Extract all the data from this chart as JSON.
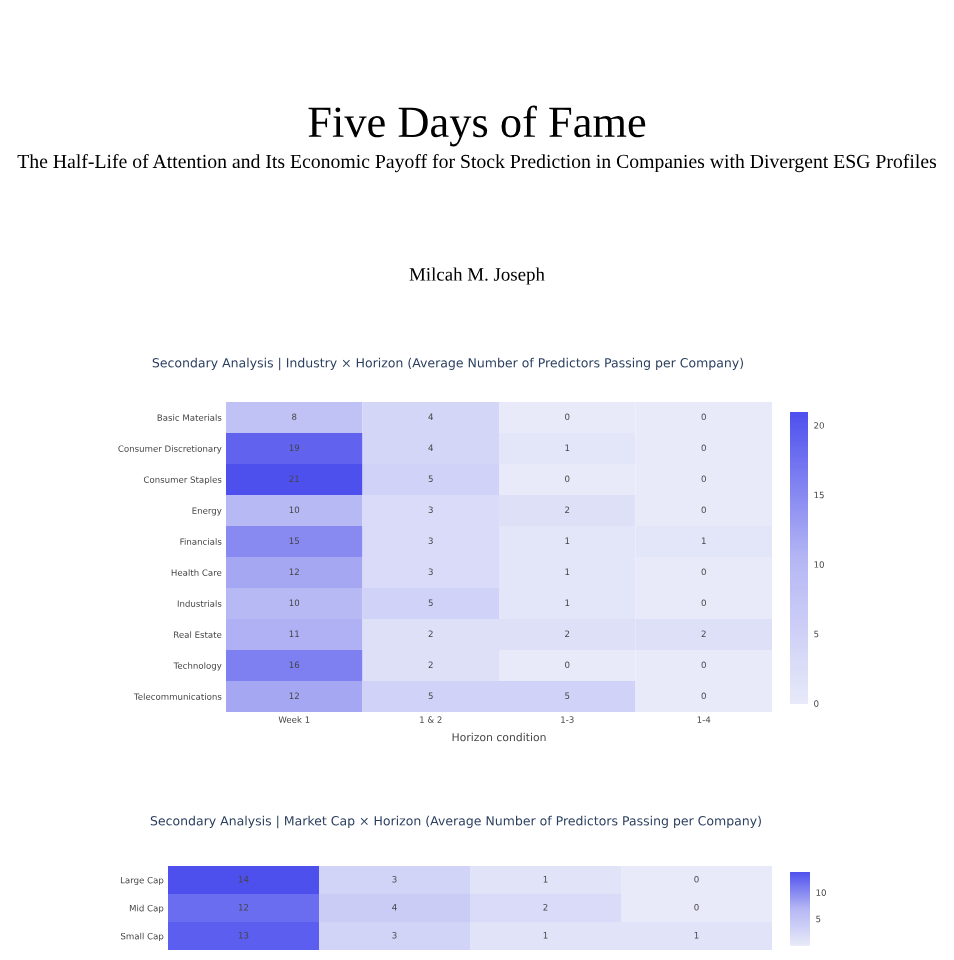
{
  "chart_data": [
    {
      "type": "other",
      "title": "Five Days of Fame",
      "subtitle": "The Half-Life of Attention and Its Economic Payoff for Stock Prediction in Companies with Divergent ESG Profiles",
      "annotations": [
        "Milcah M. Joseph"
      ]
    },
    {
      "type": "heatmap",
      "title": "Secondary Analysis | Industry × Horizon (Average Number of Predictors Passing per Company)",
      "xlabel": "Horizon condition",
      "categories": [
        "Week 1",
        "1 & 2",
        "1-3",
        "1-4"
      ],
      "y_categories": [
        "Basic Materials",
        "Consumer Discretionary",
        "Consumer Staples",
        "Energy",
        "Financials",
        "Health Care",
        "Industrials",
        "Real Estate",
        "Technology",
        "Telecommunications"
      ],
      "cells": [
        [
          8,
          4,
          0,
          0
        ],
        [
          19,
          4,
          1,
          0
        ],
        [
          21,
          5,
          0,
          0
        ],
        [
          10,
          3,
          2,
          0
        ],
        [
          15,
          3,
          1,
          1
        ],
        [
          12,
          3,
          1,
          0
        ],
        [
          10,
          5,
          1,
          0
        ],
        [
          11,
          2,
          2,
          2
        ],
        [
          16,
          2,
          0,
          0
        ],
        [
          12,
          5,
          5,
          0
        ]
      ],
      "clim": [
        0,
        21
      ],
      "cticks": [
        0,
        5,
        10,
        15,
        20
      ],
      "data_labels": true
    },
    {
      "type": "heatmap",
      "title": "Secondary Analysis | Market Cap × Horizon (Average Number of Predictors Passing per Company)",
      "categories": [
        null,
        null,
        null,
        null
      ],
      "y_categories": [
        "Large Cap",
        "Mid Cap",
        "Small Cap"
      ],
      "cells": [
        [
          14,
          3,
          1,
          0
        ],
        [
          12,
          4,
          2,
          0
        ],
        [
          13,
          3,
          1,
          1
        ]
      ],
      "clim": [
        0,
        14
      ],
      "cticks": [
        5,
        10
      ],
      "data_labels": true
    }
  ]
}
